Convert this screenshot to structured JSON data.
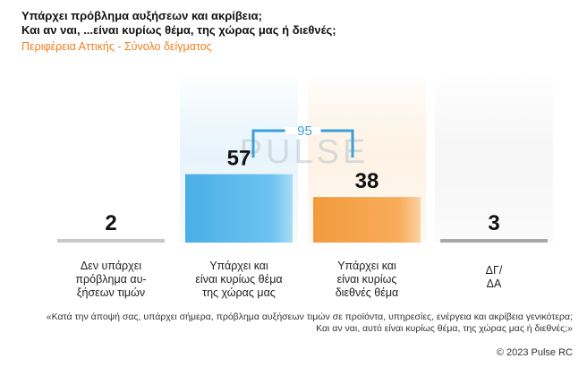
{
  "title_line1": "Υπάρχει πρόβλημα αυξήσεων και ακρίβεια;",
  "title_line2": "Και αν ναι, ...είναι κυρίως θέμα, της χώρας μας ή διεθνές;",
  "subtitle": "Περιφέρεια Αττικής - Σύνολο δείγματος",
  "chart_data": {
    "type": "bar",
    "categories": [
      [
        "Δεν υπάρχει",
        "πρόβλημα αυ-",
        "ξήσεων τιμών"
      ],
      [
        "Υπάρχει και",
        "είναι κυρίως θέμα",
        "της  χώρας μας"
      ],
      [
        "Υπάρχει και",
        "είναι κυρίως",
        "διεθνές θέμα"
      ],
      [
        "ΔΓ/",
        "ΔΑ"
      ]
    ],
    "values": [
      2,
      57,
      38,
      3
    ],
    "value_labels": [
      "2",
      "57",
      "38",
      "3"
    ],
    "bar_colors": [
      "#c9c9c9",
      "#5bb8ea",
      "#f5a24a",
      "#a9a9a9"
    ],
    "group_total": {
      "label": "95",
      "spans": [
        1,
        2
      ]
    },
    "watermark": "PULSE",
    "grid": false,
    "legend": "none"
  },
  "question": "«Κατά την άποψή σας, υπάρχει σήμερα, πρόβλημα αυξήσεων τιμών σε προϊόντα, υπηρεσίες, ενέργεια και ακρίβεια γενικότερα; Και αν ναι, αυτό είναι κυρίως θέμα, της χώρας μας ή διεθνές;»",
  "copyright": "© 2023 Pulse RC",
  "colors": {
    "bracket": "#3aa0dc",
    "subtitle": "#f07f1c"
  }
}
